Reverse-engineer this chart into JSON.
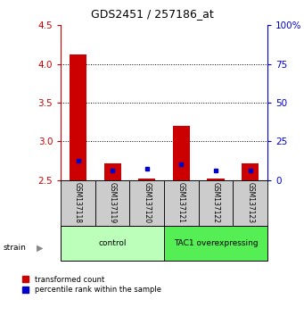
{
  "title": "GDS2451 / 257186_at",
  "samples": [
    "GSM137118",
    "GSM137119",
    "GSM137120",
    "GSM137121",
    "GSM137122",
    "GSM137123"
  ],
  "red_values": [
    4.12,
    2.72,
    2.52,
    3.2,
    2.52,
    2.72
  ],
  "blue_values_raw": [
    2.75,
    2.63,
    2.65,
    2.7,
    2.63,
    2.62
  ],
  "baseline": 2.5,
  "ylim_left": [
    2.5,
    4.5
  ],
  "yticks_left": [
    2.5,
    3.0,
    3.5,
    4.0,
    4.5
  ],
  "ytick_labels_right": [
    "0",
    "25",
    "50",
    "75",
    "100%"
  ],
  "groups": [
    {
      "label": "control",
      "samples": [
        0,
        1,
        2
      ],
      "color": "#bbffbb"
    },
    {
      "label": "TAC1 overexpressing",
      "samples": [
        3,
        4,
        5
      ],
      "color": "#55ee55"
    }
  ],
  "red_color": "#cc0000",
  "blue_color": "#0000cc",
  "bar_width": 0.5,
  "legend_red": "transformed count",
  "legend_blue": "percentile rank within the sample",
  "strain_label": "strain",
  "left_axis_color": "#cc0000",
  "right_axis_color": "#0000cc",
  "sample_box_color": "#cccccc",
  "figsize": [
    3.41,
    3.54
  ],
  "dpi": 100
}
